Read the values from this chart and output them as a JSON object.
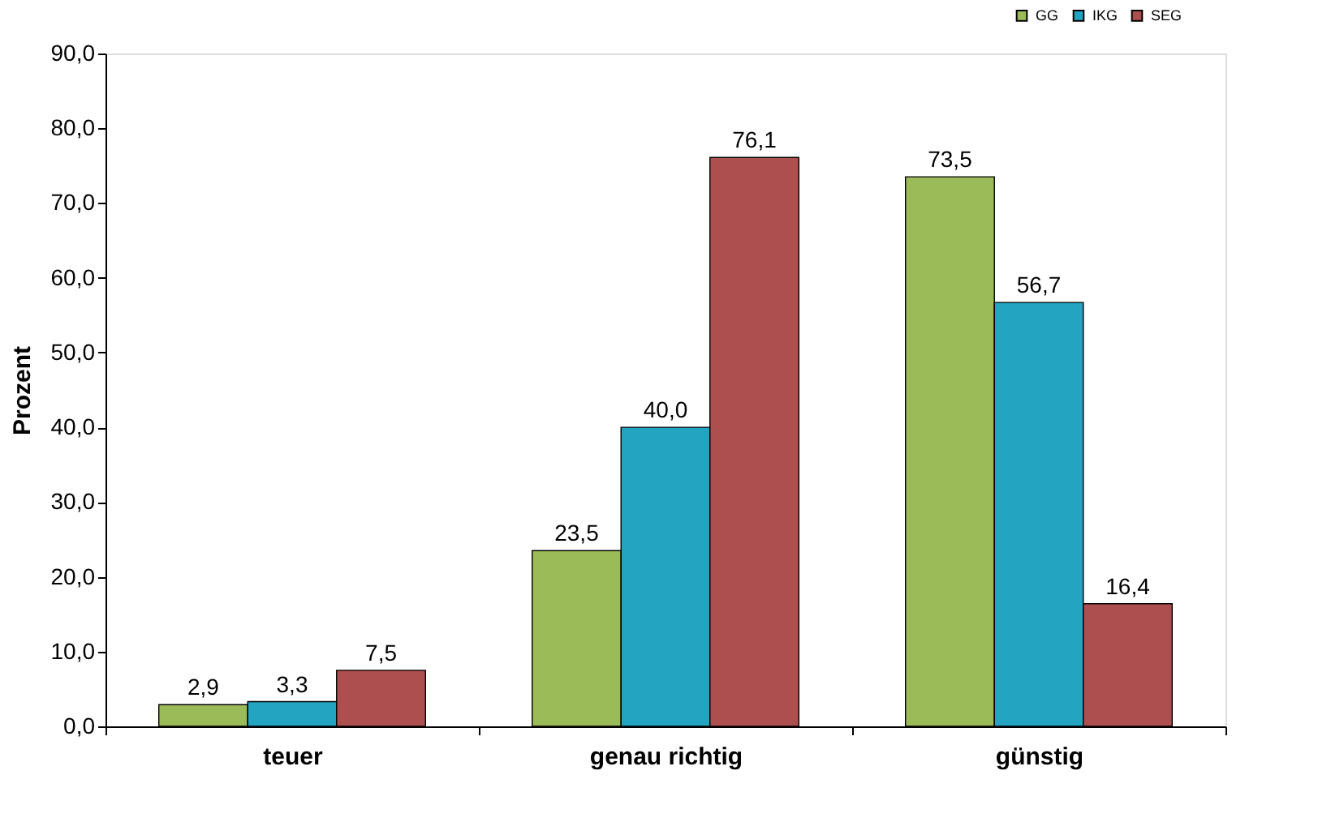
{
  "chart_data": {
    "type": "bar",
    "ylabel": "Prozent",
    "categories": [
      "teuer",
      "genau richtig",
      "günstig"
    ],
    "series": [
      {
        "name": "GG",
        "color": "#9bbb59",
        "values": [
          2.9,
          23.5,
          73.5
        ],
        "value_labels": [
          "2,9",
          "23,5",
          "73,5"
        ]
      },
      {
        "name": "IKG",
        "color": "#23a5c1",
        "values": [
          3.3,
          40.0,
          56.7
        ],
        "value_labels": [
          "3,3",
          "40,0",
          "56,7"
        ]
      },
      {
        "name": "SEG",
        "color": "#ad4f4f",
        "values": [
          7.5,
          76.1,
          16.4
        ],
        "value_labels": [
          "7,5",
          "76,1",
          "16,4"
        ]
      }
    ],
    "ylim": [
      0,
      90
    ],
    "yticks": [
      {
        "value": 0,
        "label": "0,0"
      },
      {
        "value": 10,
        "label": "10,0"
      },
      {
        "value": 20,
        "label": "20,0"
      },
      {
        "value": 30,
        "label": "30,0"
      },
      {
        "value": 40,
        "label": "40,0"
      },
      {
        "value": 50,
        "label": "50,0"
      },
      {
        "value": 60,
        "label": "60,0"
      },
      {
        "value": 70,
        "label": "70,0"
      },
      {
        "value": 80,
        "label": "80,0"
      },
      {
        "value": 90,
        "label": "90,0"
      }
    ],
    "grid": false,
    "legend": "top right"
  }
}
